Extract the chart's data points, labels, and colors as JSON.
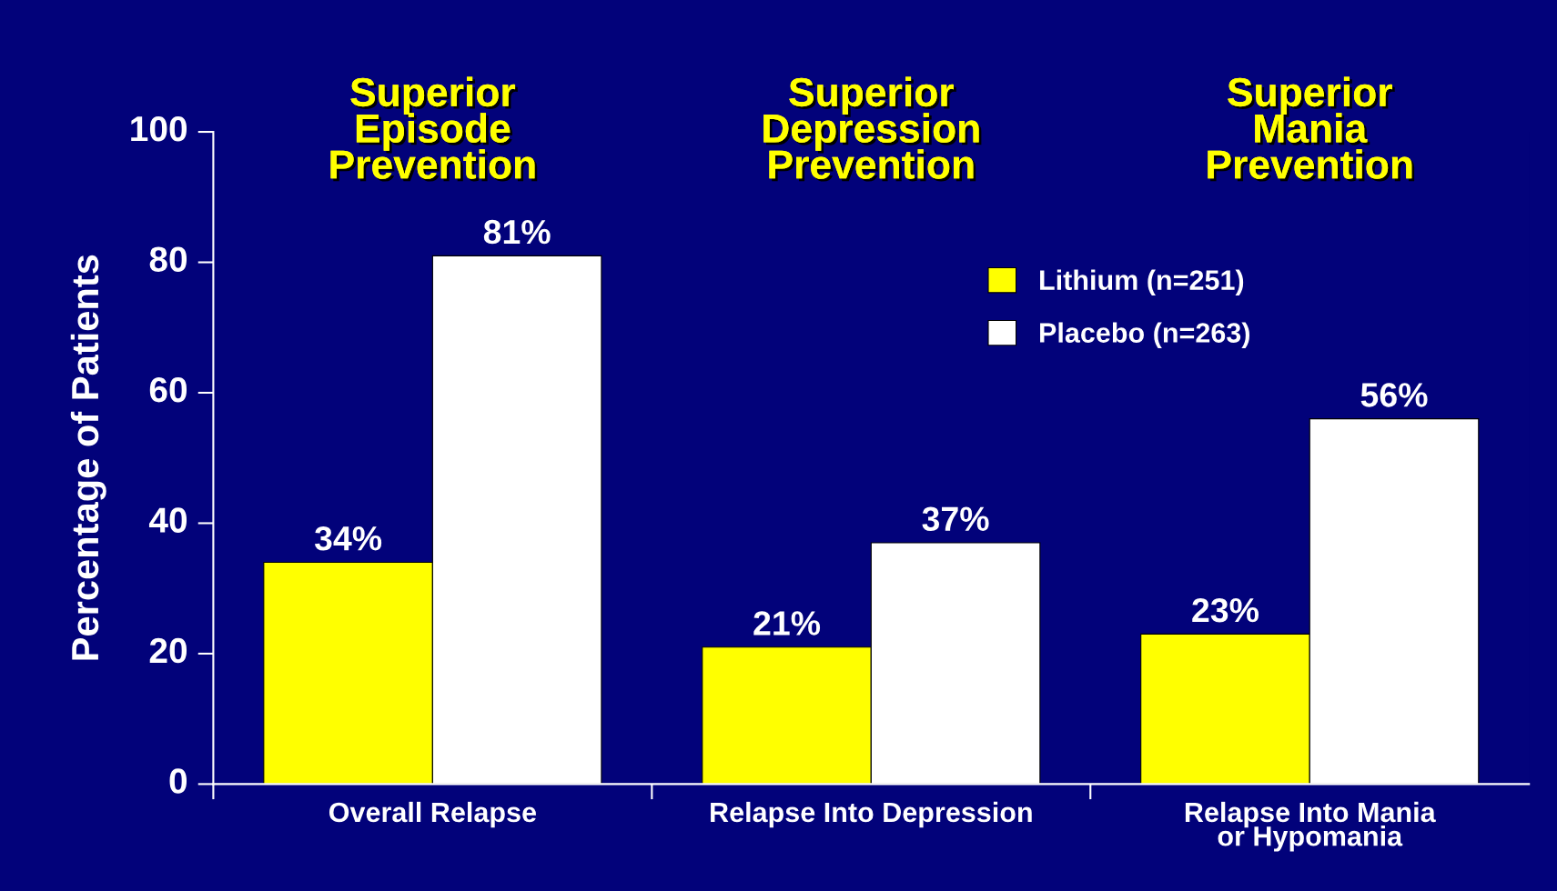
{
  "chart_data": {
    "type": "bar",
    "ylabel": "Percentage of Patients",
    "categories": [
      "Overall Relapse",
      "Relapse Into Depression",
      "Relapse Into Mania\nor Hypomania"
    ],
    "series": [
      {
        "name": "Lithium (n=251)",
        "color": "#ffff00",
        "values": [
          34,
          21,
          23
        ],
        "value_labels": [
          "34%",
          "21%",
          "23%"
        ]
      },
      {
        "name": "Placebo (n=263)",
        "color": "#ffffff",
        "values": [
          81,
          37,
          56
        ],
        "value_labels": [
          "81%",
          "37%",
          "56%"
        ]
      }
    ],
    "ylim": [
      0,
      100
    ],
    "yticks": [
      0,
      20,
      40,
      60,
      80,
      100
    ],
    "grid": false,
    "legend": "top right",
    "annotations": [
      "Superior\nEpisode\nPrevention",
      "Superior\nDepression\nPrevention",
      "Superior\nMania\nPrevention"
    ]
  }
}
